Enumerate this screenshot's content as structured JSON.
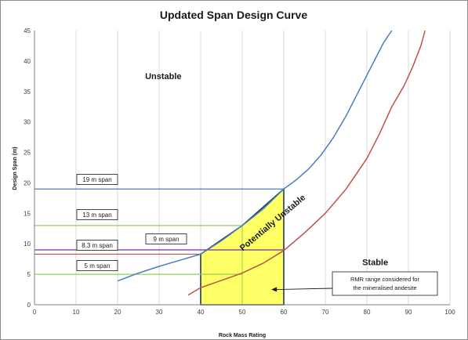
{
  "colors": {
    "blue_curve": "#4a7ebb",
    "red_curve": "#c0504d",
    "purple": "#7030a0",
    "green": "#92d050",
    "yellow_fill": "#ffff66",
    "zone_border": "#1f3864",
    "axis": "#808080",
    "grid": "#d0d0d0"
  },
  "chart_data": {
    "type": "line",
    "title": "Updated Span Design Curve",
    "xlabel": "Rock Mass Rating",
    "ylabel": "Design Span (m)",
    "xlim": [
      0,
      100
    ],
    "ylim": [
      0,
      45
    ],
    "xticks": [
      0,
      10,
      20,
      30,
      40,
      50,
      60,
      70,
      80,
      90,
      100
    ],
    "yticks": [
      0,
      5,
      10,
      15,
      20,
      25,
      30,
      35,
      40,
      45
    ],
    "grid": "vertical",
    "series": [
      {
        "color": "#4a7ebb",
        "x": [
          20,
          25,
          30,
          35,
          40,
          45,
          50,
          55,
          60,
          63,
          66,
          69,
          72,
          75,
          78,
          81,
          84,
          86
        ],
        "y": [
          3.9,
          5.2,
          6.3,
          7.3,
          8.3,
          10.5,
          13.0,
          15.7,
          19.0,
          20.5,
          22.3,
          24.6,
          27.5,
          31.0,
          35.0,
          39.0,
          43.0,
          45.0
        ]
      },
      {
        "color": "#c0504d",
        "x": [
          37,
          40,
          45,
          50,
          55,
          60,
          65,
          70,
          75,
          80,
          83,
          86,
          89,
          91,
          93,
          94
        ],
        "y": [
          1.6,
          2.8,
          4.0,
          5.2,
          6.8,
          8.9,
          11.8,
          15.0,
          19.0,
          24.0,
          28.0,
          32.5,
          36.0,
          39.0,
          42.5,
          45.0
        ]
      }
    ],
    "span_lines": [
      {
        "label": "19 m span",
        "y": 19,
        "x_end": 60,
        "color": "#4a7ebb"
      },
      {
        "label": "13 m span",
        "y": 13,
        "x_end": 50,
        "color": "#92d050"
      },
      {
        "label": "8.3 m span",
        "y": 8.3,
        "x_end": 40,
        "color": "#c0504d"
      },
      {
        "label": "5 m span",
        "y": 5,
        "x_end": 50,
        "color": "#92d050"
      }
    ],
    "purple_line": {
      "label": "9 m span",
      "y": 9,
      "x_end": 60
    },
    "zone": {
      "polygon": [
        [
          40,
          0
        ],
        [
          40,
          8.3
        ],
        [
          50,
          13
        ],
        [
          60,
          19
        ],
        [
          60,
          0
        ]
      ],
      "label": "Potentially Unstable"
    },
    "zone_gridlines": {
      "x": 50,
      "y": 5
    },
    "regions": [
      {
        "label": "Unstable",
        "x": 31,
        "y": 37
      },
      {
        "label": "Stable",
        "x": 82,
        "y": 6.5
      }
    ],
    "callout": {
      "lines": [
        "RMR range considered for",
        "the mineralised andesite"
      ],
      "target": [
        57,
        2.5
      ]
    }
  }
}
